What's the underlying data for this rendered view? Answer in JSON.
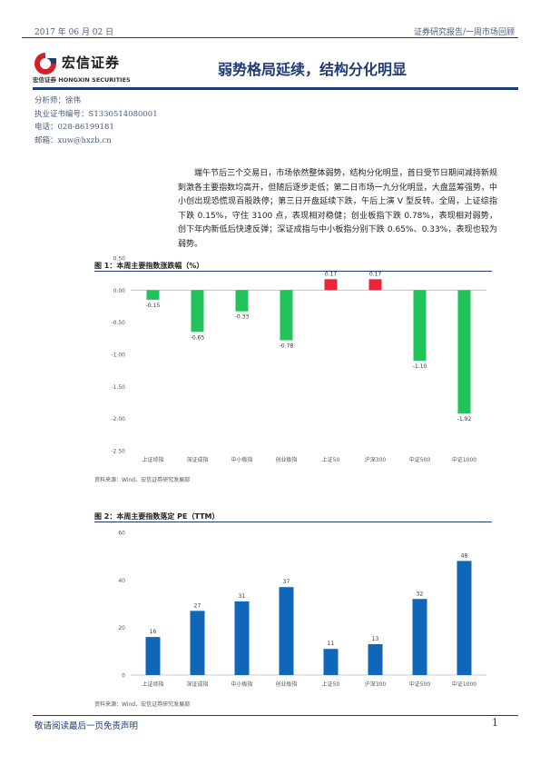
{
  "header": {
    "date": "2017 年 06 月 02 日",
    "category": "证券研究报告/一周市场回顾"
  },
  "logo": {
    "name": "宏信证券",
    "name_en": "宏信证券 HONGXIN SECURITIES"
  },
  "title": "弱势格局延续，结构分化明显",
  "analyst": {
    "name": "分析师：徐伟",
    "license": "执业证书编号：S1330514080001",
    "phone": "电话：028-86199181",
    "email": "邮箱：xuw@hxzb.cn"
  },
  "summary": "端午节后三个交易日，市场依然整体弱势，结构分化明显，首日受节日期间减持新规刺激各主要指数均高开，但随后逐步走低；第二日市场一九分化明显，大盘蓝筹强势，中小创出现恐慌现百股跌停；第三日开盘延续下跌，午后上演 V 型反转。全周，上证综指下跌 0.15%，守住 3100 点，表现相对稳健；创业板指下跌 0.78%，表现相对弱势，创下年内新低后快速反弹；深证成指与中小板指分别下跌 0.65%、0.33%，表现也较为弱势。",
  "figure1": {
    "title": "图 1：本周主要指数涨跌幅（%）",
    "source": "资料来源：Wind、宏信证券研究发展部"
  },
  "figure2": {
    "title": "图 2：本周主要指数落定 PE（TTM）",
    "source": "资料来源：Wind、宏信证券研究发展部"
  },
  "footer": {
    "note": "敬请阅读最后一页免责声明",
    "page": "1"
  },
  "chart_data": [
    {
      "type": "bar",
      "categories": [
        "上证综指",
        "深证成指",
        "中小板指",
        "创业板指",
        "上证50",
        "沪深300",
        "中证500",
        "中证1000"
      ],
      "values": [
        -0.15,
        -0.65,
        -0.33,
        -0.78,
        0.17,
        0.17,
        -1.1,
        -1.92
      ],
      "value_labels": [
        "-0.15",
        "-0.65",
        "-0.33",
        "-0.78",
        "0.17",
        "0.17",
        "-1.10",
        "-1.92"
      ],
      "yticks": [
        "0.50",
        "0.00",
        "-0.50",
        "-1.00",
        "-1.50",
        "-2.00",
        "-2.50"
      ],
      "ylim": [
        -2.5,
        0.5
      ],
      "colors": {
        "positive": "#e8253a",
        "negative": "#21c45a"
      },
      "grid": false
    },
    {
      "type": "bar",
      "categories": [
        "上证综指",
        "深证成指",
        "中小板指",
        "创业板指",
        "上证50",
        "沪深300",
        "中证500",
        "中证1000"
      ],
      "values": [
        16,
        27,
        31,
        37,
        11,
        13,
        32,
        48
      ],
      "value_labels": [
        "16",
        "27",
        "31",
        "37",
        "11",
        "13",
        "32",
        "48"
      ],
      "yticks": [
        "60",
        "40",
        "20",
        "0"
      ],
      "ylim": [
        0,
        60
      ],
      "colors": {
        "bar": "#1066b7"
      },
      "grid": false
    }
  ]
}
